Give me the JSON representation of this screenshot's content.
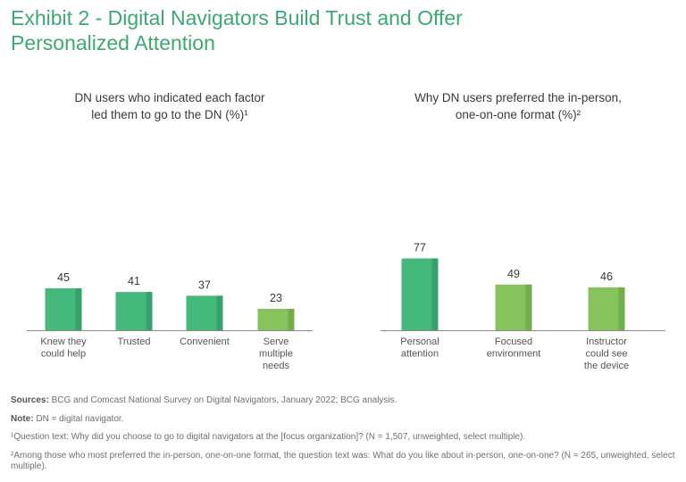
{
  "title": {
    "line1": "Exhibit 2 - Digital Navigators Build Trust and Offer",
    "line2": "Personalized Attention"
  },
  "colors": {
    "title": "#3da873",
    "dark_green": "#45b97c",
    "dark_green_shade": "#38a06a",
    "light_green": "#86c35d",
    "light_green_shade": "#74ad4c",
    "axis": "#8c8c8c"
  },
  "chart_data": [
    {
      "type": "bar",
      "title_lines": [
        "DN users who indicated each factor",
        "led them to go to the DN (%)¹"
      ],
      "categories": [
        [
          "Knew they",
          "could help"
        ],
        [
          "Trusted"
        ],
        [
          "Convenient"
        ],
        [
          "Serve",
          "multiple",
          "needs"
        ]
      ],
      "values": [
        45,
        41,
        37,
        23
      ],
      "bar_colors": [
        "dark",
        "dark",
        "dark",
        "light"
      ],
      "ylim": [
        0,
        80
      ],
      "xlabel": "",
      "ylabel": "",
      "grid": false,
      "legend": "none"
    },
    {
      "type": "bar",
      "title_lines": [
        "Why DN users preferred the in-person,",
        "one-on-one format (%)²"
      ],
      "categories": [
        [
          "Personal",
          "attention"
        ],
        [
          "Focused",
          "environment"
        ],
        [
          "Instructor",
          "could see",
          "the device"
        ]
      ],
      "values": [
        77,
        49,
        46
      ],
      "bar_colors": [
        "dark",
        "light",
        "light"
      ],
      "ylim": [
        0,
        80
      ],
      "xlabel": "",
      "ylabel": "",
      "grid": false,
      "legend": "none"
    }
  ],
  "footnotes": {
    "sources_label": "Sources:",
    "sources_text": " BCG and Comcast National Survey on Digital Navigators, January 2022; BCG analysis.",
    "note_label": "Note:",
    "note_text": " DN = digital navigator.",
    "fn1": "¹Question text: Why did you choose to go to digital navigators at the [focus organization]? (N = 1,507, unweighted, select multiple).",
    "fn2": "²Among those who most preferred the in-person, one-on-one format, the question text was: What do you like about in-person, one-on-one? (N = 265, unweighted, select multiple)."
  }
}
